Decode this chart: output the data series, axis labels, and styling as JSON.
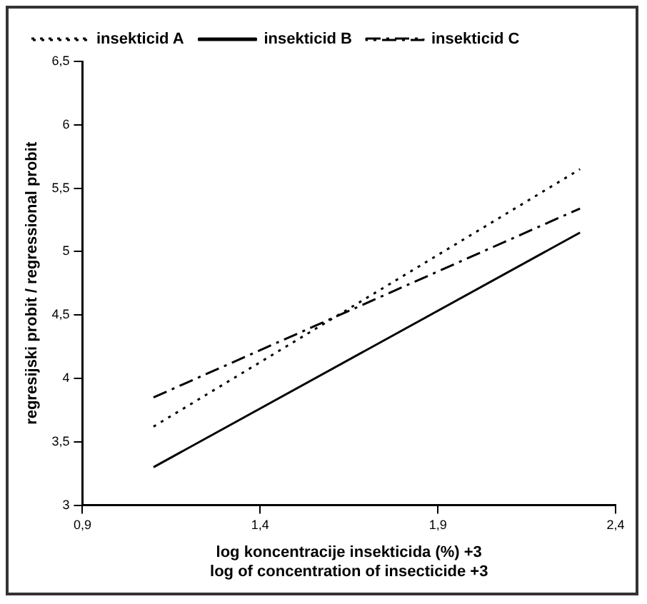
{
  "chart_data": {
    "type": "line",
    "xlabel": "log koncentracije insekticida (%) +3\nlog of concentration of insecticide +3",
    "ylabel": "regresijski probit / regressional probit",
    "x": [
      1.1,
      2.3
    ],
    "series": [
      {
        "name": "insekticid A",
        "color": "#000000",
        "line_style": "dotted",
        "values": [
          3.62,
          5.65
        ]
      },
      {
        "name": "insekticid B",
        "color": "#000000",
        "line_style": "solid",
        "values": [
          3.3,
          5.15
        ]
      },
      {
        "name": "insekticid C",
        "color": "#000000",
        "line_style": "dashed",
        "values": [
          3.85,
          5.34
        ]
      }
    ],
    "xlim": [
      0.9,
      2.4
    ],
    "xticks": [
      {
        "value": 0.9,
        "label": "0,9"
      },
      {
        "value": 1.4,
        "label": "1,4"
      },
      {
        "value": 1.9,
        "label": "1,9"
      },
      {
        "value": 2.4,
        "label": "2,4"
      }
    ],
    "ylim": [
      3,
      6.5
    ],
    "yticks": [
      3,
      {
        "value": 3.5,
        "label": "3,5"
      },
      4,
      {
        "value": 4.5,
        "label": "4,5"
      },
      5,
      {
        "value": 5.5,
        "label": "5,5"
      },
      6,
      {
        "value": 6.5,
        "label": "6,5"
      }
    ],
    "grid": false,
    "legend": "top left",
    "marker": "none"
  }
}
